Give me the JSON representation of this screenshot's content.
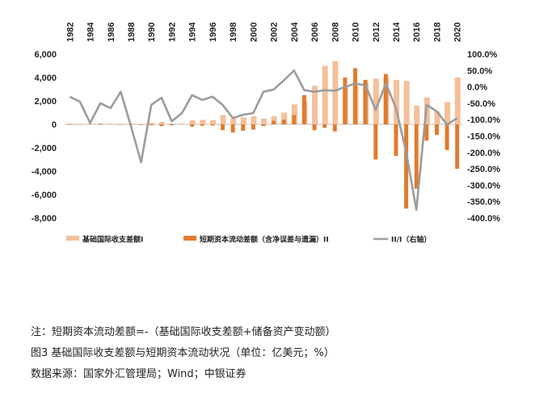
{
  "chart_data": {
    "type": "bar+line",
    "x": [
      1982,
      1983,
      1984,
      1985,
      1986,
      1987,
      1988,
      1989,
      1990,
      1991,
      1992,
      1993,
      1994,
      1995,
      1996,
      1997,
      1998,
      1999,
      2000,
      2001,
      2002,
      2003,
      2004,
      2005,
      2006,
      2007,
      2008,
      2009,
      2010,
      2011,
      2012,
      2013,
      2014,
      2015,
      2016,
      2017,
      2018,
      2019,
      2020
    ],
    "x_tick_labels": [
      "1982",
      "1984",
      "1986",
      "1988",
      "1990",
      "1992",
      "1994",
      "1996",
      "1998",
      "2000",
      "2002",
      "2004",
      "2006",
      "2008",
      "2010",
      "2012",
      "2014",
      "2016",
      "2018",
      "2020"
    ],
    "y_left_ticks": [
      "6,000",
      "4,000",
      "2,000",
      "0",
      "-2,000",
      "-4,000",
      "-6,000",
      "-8,000"
    ],
    "y_left_lim": [
      -8000,
      6000
    ],
    "y_right_ticks": [
      "100.0%",
      "50.0%",
      "0.0%",
      "-50.0%",
      "-100.0%",
      "-150.0%",
      "-200.0%",
      "-250.0%",
      "-300.0%",
      "-350.0%",
      "-400.0%"
    ],
    "y_right_lim": [
      -400,
      100
    ],
    "series": [
      {
        "name": "基础国际收支差额I",
        "type": "bar",
        "color": "#f4c09a",
        "values": [
          60,
          40,
          -20,
          -60,
          -20,
          50,
          -40,
          40,
          120,
          200,
          80,
          -30,
          350,
          380,
          360,
          800,
          500,
          600,
          700,
          500,
          700,
          1000,
          1700,
          2000,
          3300,
          5000,
          5400,
          3200,
          3300,
          3600,
          3900,
          4000,
          3800,
          3700,
          1600,
          2300,
          1100,
          1900,
          4000
        ]
      },
      {
        "name": "短期资本流动差额（含净误差与遗漏）II",
        "type": "bar",
        "color": "#e07b2e",
        "values": [
          -40,
          -30,
          40,
          60,
          30,
          -40,
          60,
          -50,
          -80,
          -150,
          -80,
          30,
          -200,
          -120,
          -100,
          -500,
          -700,
          -550,
          -450,
          -150,
          300,
          400,
          800,
          2500,
          -500,
          -300,
          -600,
          4000,
          4800,
          3800,
          -3000,
          4300,
          -2700,
          -7200,
          -5500,
          -1400,
          -900,
          -2200,
          -3800
        ]
      },
      {
        "name": "II/I（右轴）",
        "type": "line",
        "axis": "right",
        "color": "#9c9c9c",
        "values": [
          -30,
          -45,
          -110,
          -50,
          -65,
          -15,
          -120,
          -230,
          -55,
          -33,
          -105,
          -80,
          -25,
          -40,
          -30,
          -55,
          -95,
          -85,
          -80,
          -15,
          -8,
          20,
          50,
          -10,
          -15,
          -10,
          -12,
          0,
          10,
          5,
          -70,
          10,
          -65,
          -200,
          -375,
          -55,
          -75,
          -115,
          -95
        ]
      }
    ]
  },
  "notes": {
    "note_line": "注：短期资本流动差额=-（基础国际收支差额+储备资产变动额）",
    "figure_line": "图3  基础国际收支差额与短期资本流动状况（单位：亿美元；%）",
    "source_line": "数据来源：国家外汇管理局；Wind；中银证券"
  }
}
